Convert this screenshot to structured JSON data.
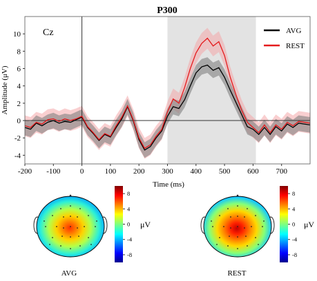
{
  "chart_data": [
    {
      "type": "line",
      "title": "P300",
      "annotation": "Cz",
      "xlabel": "Time (ms)",
      "ylabel": "Amplitude (μV)",
      "xlim": [
        -200,
        800
      ],
      "ylim": [
        -5,
        12
      ],
      "xticks": [
        -200,
        -100,
        0,
        100,
        200,
        300,
        400,
        500,
        600,
        700
      ],
      "yticks": [
        -4,
        -2,
        0,
        2,
        4,
        6,
        8,
        10
      ],
      "shaded_window": [
        300,
        610
      ],
      "legend_position": "top-right",
      "x": [
        -200,
        -180,
        -160,
        -140,
        -120,
        -100,
        -80,
        -60,
        -40,
        -20,
        0,
        20,
        40,
        60,
        80,
        100,
        120,
        140,
        160,
        180,
        200,
        220,
        240,
        260,
        280,
        300,
        320,
        340,
        360,
        380,
        400,
        420,
        440,
        460,
        480,
        500,
        520,
        540,
        560,
        580,
        600,
        620,
        640,
        660,
        680,
        700,
        720,
        740,
        760,
        780,
        800
      ],
      "series": [
        {
          "name": "AVG",
          "color": "#000000",
          "values": [
            -0.8,
            -1.0,
            -0.3,
            -0.6,
            -0.2,
            0.0,
            -0.3,
            -0.1,
            -0.2,
            0.1,
            0.4,
            -0.8,
            -1.5,
            -2.3,
            -1.6,
            -1.9,
            -0.8,
            0.2,
            1.6,
            0.0,
            -2.2,
            -3.4,
            -3.0,
            -2.0,
            -1.2,
            0.5,
            1.6,
            1.4,
            2.4,
            4.0,
            5.5,
            6.2,
            6.4,
            5.8,
            6.1,
            5.0,
            3.5,
            2.1,
            0.7,
            -0.7,
            -1.0,
            -1.6,
            -0.8,
            -1.6,
            -0.7,
            -1.2,
            -0.4,
            -0.8,
            -0.3,
            -0.4,
            -0.5
          ]
        },
        {
          "name": "REST",
          "color": "#e41a1c",
          "values": [
            -0.6,
            -0.8,
            -0.2,
            -0.4,
            0.1,
            0.2,
            -0.1,
            0.2,
            0.0,
            0.2,
            0.5,
            -0.7,
            -1.4,
            -2.2,
            -1.5,
            -1.8,
            -0.6,
            0.4,
            1.7,
            0.1,
            -2.0,
            -3.2,
            -2.8,
            -1.8,
            -1.0,
            1.0,
            2.5,
            2.0,
            3.8,
            6.0,
            7.8,
            8.9,
            9.5,
            8.6,
            9.1,
            7.5,
            5.0,
            3.0,
            1.2,
            -0.2,
            -0.8,
            -1.4,
            -0.5,
            -1.4,
            -0.5,
            -1.0,
            -0.2,
            -0.6,
            -0.1,
            -0.2,
            -0.3
          ]
        }
      ]
    },
    {
      "type": "heatmap",
      "label": "AVG",
      "colorbar_ticks": [
        8,
        4,
        0,
        -4,
        -8
      ],
      "colorbar_unit": "μV",
      "colorbar_range": [
        -10,
        10
      ],
      "peak_value": 6
    },
    {
      "type": "heatmap",
      "label": "REST",
      "colorbar_ticks": [
        8,
        4,
        0,
        -4,
        -8
      ],
      "colorbar_unit": "μV",
      "colorbar_range": [
        -10,
        10
      ],
      "peak_value": 9
    }
  ],
  "colors": {
    "avg_band": "#808080",
    "rest_band": "#f4a7aa",
    "window_shade": "#e3e3e3"
  }
}
